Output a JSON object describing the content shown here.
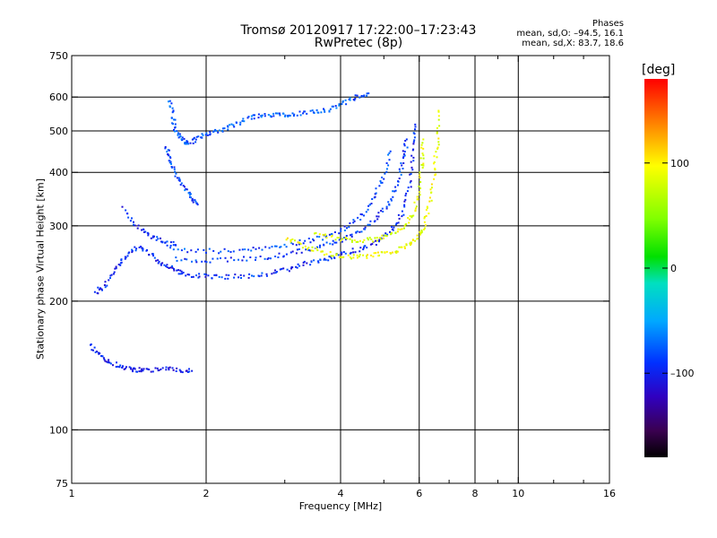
{
  "header": {
    "title": "Tromsø 20120917 17:22:00–17:23:43",
    "subtitle": "RwPretec (8p)"
  },
  "stats": {
    "heading": "Phases",
    "line_o": "mean, sd,O: –94.5, 16.1",
    "line_x": "mean, sd,X:  83.7, 18.6"
  },
  "colorbar": {
    "label": "[deg]",
    "range": [
      -180,
      180
    ],
    "ticks": [
      {
        "value": 100,
        "label": "100"
      },
      {
        "value": 0,
        "label": "0"
      },
      {
        "value": -100,
        "label": "–100"
      }
    ]
  },
  "chart_data": {
    "type": "scatter",
    "xlabel": "Frequency [MHz]",
    "ylabel": "Stationary phase Virtual Height [km]",
    "xscale": "log",
    "yscale": "log",
    "xlim": [
      1,
      16
    ],
    "ylim": [
      75,
      750
    ],
    "xticks": [
      {
        "value": 1,
        "label": "1"
      },
      {
        "value": 2,
        "label": "2"
      },
      {
        "value": 4,
        "label": "4"
      },
      {
        "value": 6,
        "label": "6"
      },
      {
        "value": 8,
        "label": "8"
      },
      {
        "value": 10,
        "label": "10"
      },
      {
        "value": 16,
        "label": "16"
      }
    ],
    "xminor": [
      3,
      5,
      7,
      9,
      12,
      14
    ],
    "xgrid": [
      2,
      4,
      6,
      8,
      10
    ],
    "yticks": [
      {
        "value": 75,
        "label": "75"
      },
      {
        "value": 100,
        "label": "100"
      },
      {
        "value": 200,
        "label": "200"
      },
      {
        "value": 300,
        "label": "300"
      },
      {
        "value": 400,
        "label": "400"
      },
      {
        "value": 500,
        "label": "500"
      },
      {
        "value": 600,
        "label": "600"
      },
      {
        "value": 750,
        "label": "750"
      }
    ],
    "ygrid": [
      100,
      200,
      300,
      400,
      500,
      600
    ],
    "grid": true,
    "traces": [
      {
        "mode": "O",
        "phase": -100,
        "points": [
          [
            1.12,
            210
          ],
          [
            1.18,
            218
          ],
          [
            1.25,
            240
          ],
          [
            1.32,
            255
          ],
          [
            1.4,
            270
          ],
          [
            1.5,
            258
          ],
          [
            1.6,
            245
          ],
          [
            1.7,
            237
          ],
          [
            1.8,
            232
          ],
          [
            2.0,
            229
          ],
          [
            2.2,
            229
          ],
          [
            2.5,
            230
          ],
          [
            2.8,
            234
          ],
          [
            3.1,
            240
          ],
          [
            3.4,
            247
          ],
          [
            3.7,
            252
          ],
          [
            4.0,
            258
          ],
          [
            4.4,
            266
          ],
          [
            4.8,
            276
          ],
          [
            5.2,
            295
          ],
          [
            5.5,
            325
          ],
          [
            5.7,
            380
          ],
          [
            5.8,
            450
          ],
          [
            5.85,
            520
          ]
        ]
      },
      {
        "mode": "O",
        "phase": -95,
        "points": [
          [
            1.7,
            252
          ],
          [
            2.0,
            250
          ],
          [
            2.4,
            252
          ],
          [
            2.8,
            255
          ],
          [
            3.2,
            262
          ],
          [
            3.6,
            270
          ],
          [
            4.0,
            280
          ],
          [
            4.4,
            292
          ],
          [
            4.8,
            312
          ],
          [
            5.1,
            340
          ],
          [
            5.35,
            380
          ],
          [
            5.5,
            430
          ],
          [
            5.6,
            480
          ]
        ]
      },
      {
        "mode": "O",
        "phase": -90,
        "points": [
          [
            1.65,
            265
          ],
          [
            2.0,
            263
          ],
          [
            2.4,
            264
          ],
          [
            2.8,
            268
          ],
          [
            3.2,
            275
          ],
          [
            3.6,
            283
          ],
          [
            4.0,
            295
          ],
          [
            4.4,
            315
          ],
          [
            4.7,
            345
          ],
          [
            4.95,
            390
          ],
          [
            5.15,
            450
          ]
        ]
      },
      {
        "mode": "O",
        "phase": -100,
        "points": [
          [
            1.3,
            330
          ],
          [
            1.4,
            300
          ],
          [
            1.5,
            285
          ],
          [
            1.6,
            276
          ],
          [
            1.7,
            272
          ]
        ]
      },
      {
        "mode": "O",
        "phase": -85,
        "points": [
          [
            1.65,
            590
          ],
          [
            1.68,
            540
          ],
          [
            1.7,
            500
          ],
          [
            1.75,
            480
          ],
          [
            1.8,
            470
          ],
          [
            1.9,
            480
          ],
          [
            2.0,
            495
          ],
          [
            2.15,
            505
          ],
          [
            2.3,
            520
          ],
          [
            2.5,
            540
          ],
          [
            2.7,
            545
          ],
          [
            2.9,
            550
          ],
          [
            3.1,
            548
          ],
          [
            3.4,
            555
          ],
          [
            3.7,
            560
          ],
          [
            4.0,
            580
          ],
          [
            4.3,
            600
          ],
          [
            4.6,
            615
          ]
        ]
      },
      {
        "mode": "O",
        "phase": -90,
        "points": [
          [
            1.62,
            460
          ],
          [
            1.65,
            430
          ],
          [
            1.7,
            400
          ],
          [
            1.78,
            370
          ],
          [
            1.85,
            350
          ],
          [
            1.9,
            340
          ]
        ]
      },
      {
        "mode": "O",
        "phase": -105,
        "points": [
          [
            1.1,
            158
          ],
          [
            1.15,
            150
          ],
          [
            1.22,
            144
          ],
          [
            1.3,
            141
          ],
          [
            1.38,
            139
          ],
          [
            1.45,
            138
          ],
          [
            1.58,
            140
          ],
          [
            1.72,
            139
          ],
          [
            1.85,
            138
          ]
        ]
      },
      {
        "mode": "X",
        "phase": 90,
        "points": [
          [
            3.0,
            282
          ],
          [
            3.3,
            270
          ],
          [
            3.6,
            262
          ],
          [
            4.0,
            256
          ],
          [
            4.4,
            255
          ],
          [
            4.8,
            258
          ],
          [
            5.2,
            262
          ],
          [
            5.6,
            270
          ],
          [
            5.9,
            280
          ],
          [
            6.1,
            300
          ],
          [
            6.3,
            340
          ],
          [
            6.45,
            400
          ],
          [
            6.55,
            470
          ],
          [
            6.6,
            560
          ]
        ]
      },
      {
        "mode": "X",
        "phase": 85,
        "points": [
          [
            3.5,
            290
          ],
          [
            3.9,
            282
          ],
          [
            4.3,
            278
          ],
          [
            4.7,
            280
          ],
          [
            5.1,
            285
          ],
          [
            5.5,
            298
          ],
          [
            5.8,
            320
          ],
          [
            5.95,
            360
          ],
          [
            6.05,
            420
          ],
          [
            6.1,
            480
          ]
        ]
      }
    ]
  }
}
